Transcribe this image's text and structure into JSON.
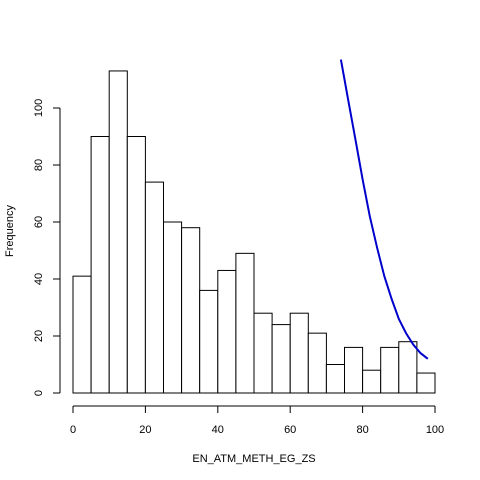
{
  "chart_data": {
    "type": "bar",
    "title": "",
    "xlabel": "EN_ATM_METH_EG_ZS",
    "ylabel": "Frequency",
    "xlim": [
      0,
      100
    ],
    "ylim": [
      0,
      118
    ],
    "bin_width": 5,
    "bin_starts": [
      0,
      5,
      10,
      15,
      20,
      25,
      30,
      35,
      40,
      45,
      50,
      55,
      60,
      65,
      70,
      75,
      80,
      85,
      90,
      95
    ],
    "values": [
      41,
      90,
      113,
      90,
      74,
      60,
      58,
      36,
      43,
      49,
      28,
      24,
      28,
      21,
      10,
      16,
      8,
      16,
      18,
      7
    ],
    "x_ticks": [
      0,
      20,
      40,
      60,
      80,
      100
    ],
    "y_ticks": [
      0,
      20,
      40,
      60,
      80,
      100
    ],
    "bar_fill": "#ffffff",
    "bar_stroke": "#000000",
    "curve": {
      "color": "#0000cc",
      "points": [
        [
          74,
          117
        ],
        [
          76,
          103
        ],
        [
          78,
          89
        ],
        [
          80,
          75
        ],
        [
          82,
          62
        ],
        [
          84,
          51
        ],
        [
          86,
          41
        ],
        [
          88,
          33
        ],
        [
          90,
          26
        ],
        [
          92,
          21
        ],
        [
          94,
          17
        ],
        [
          96,
          14
        ],
        [
          98,
          12
        ]
      ]
    },
    "grid": false,
    "legend": "none"
  }
}
